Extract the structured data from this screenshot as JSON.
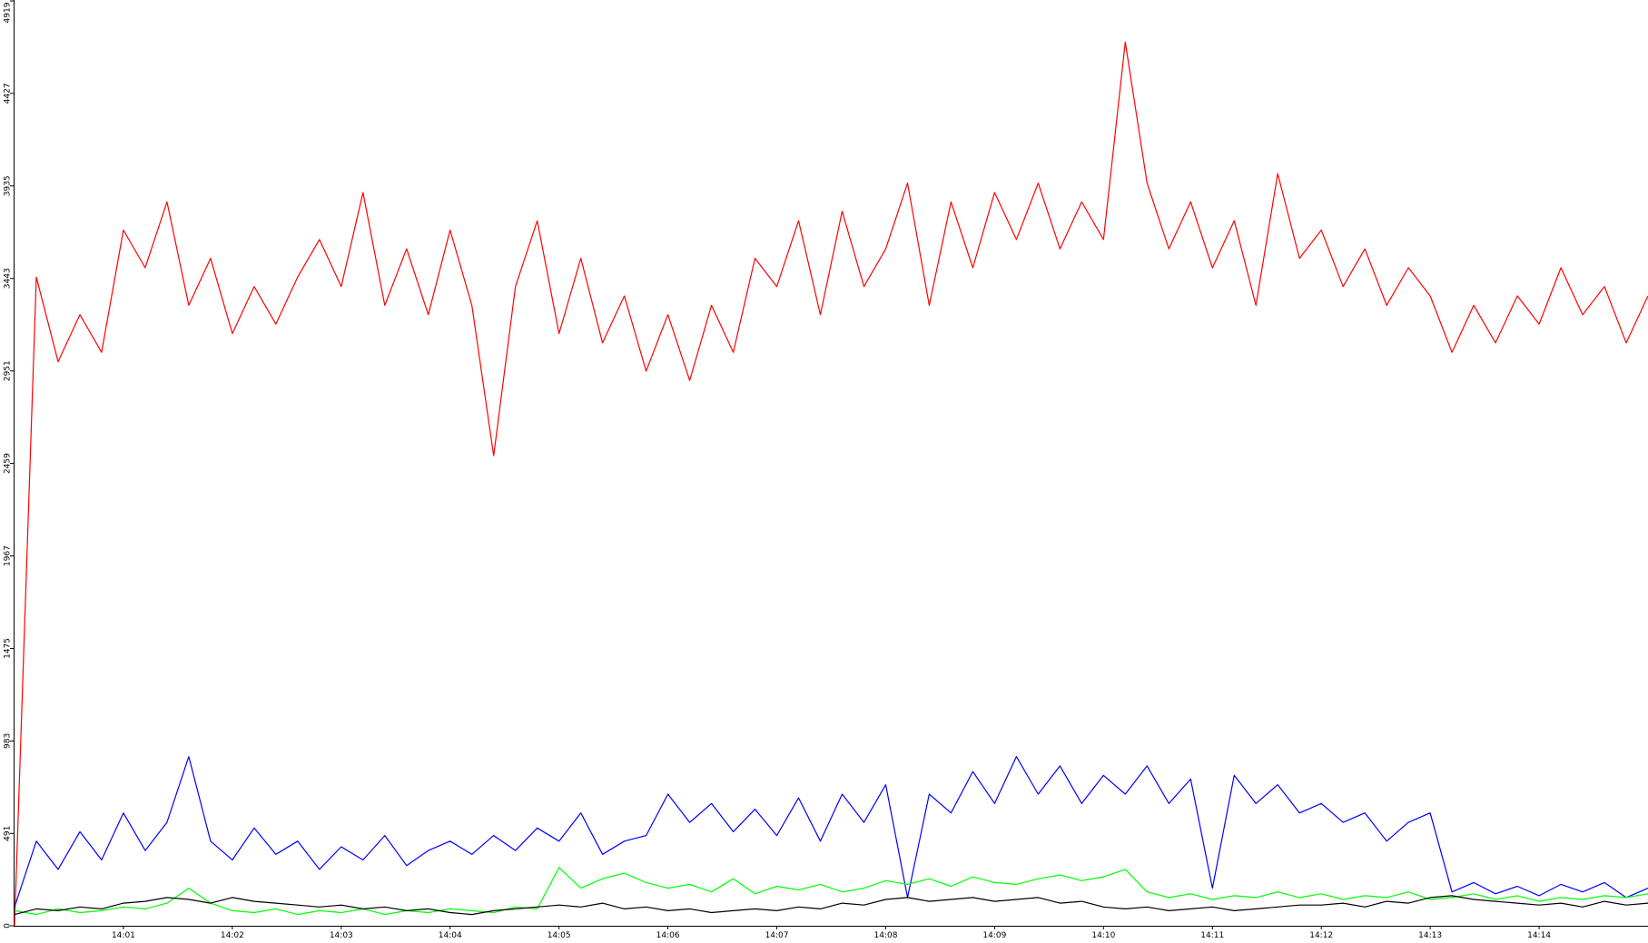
{
  "chart_data": {
    "type": "line",
    "xlim": [
      0,
      15
    ],
    "xticks": [
      {
        "value": 1,
        "label": "14:01"
      },
      {
        "value": 2,
        "label": "14:02"
      },
      {
        "value": 3,
        "label": "14:03"
      },
      {
        "value": 4,
        "label": "14:04"
      },
      {
        "value": 5,
        "label": "14:05"
      },
      {
        "value": 6,
        "label": "14:06"
      },
      {
        "value": 7,
        "label": "14:07"
      },
      {
        "value": 8,
        "label": "14:08"
      },
      {
        "value": 9,
        "label": "14:09"
      },
      {
        "value": 10,
        "label": "14:10"
      },
      {
        "value": 11,
        "label": "14:11"
      },
      {
        "value": 12,
        "label": "14:12"
      },
      {
        "value": 13,
        "label": "14:13"
      },
      {
        "value": 14,
        "label": "14:14"
      }
    ],
    "ylim": [
      0,
      4919
    ],
    "yticks": [
      0,
      491,
      983,
      1475,
      1967,
      2459,
      2951,
      3443,
      3935,
      4427,
      4919
    ],
    "series": [
      {
        "color": "#ff0000",
        "values": [
          0,
          3450,
          3000,
          3250,
          3050,
          3700,
          3500,
          3850,
          3300,
          3550,
          3150,
          3400,
          3200,
          3450,
          3650,
          3400,
          3900,
          3300,
          3600,
          3250,
          3700,
          3300,
          2500,
          3400,
          3750,
          3150,
          3550,
          3100,
          3350,
          2950,
          3250,
          2900,
          3300,
          3050,
          3550,
          3400,
          3750,
          3250,
          3800,
          3400,
          3600,
          3950,
          3300,
          3850,
          3500,
          3900,
          3650,
          3950,
          3600,
          3850,
          3650,
          4700,
          3950,
          3600,
          3850,
          3500,
          3750,
          3300,
          4000,
          3550,
          3700,
          3400,
          3600,
          3300,
          3500,
          3350,
          3050,
          3300,
          3100,
          3350,
          3200,
          3500,
          3250,
          3400,
          3100,
          3350
        ]
      },
      {
        "color": "#0000ff",
        "values": [
          100,
          450,
          300,
          500,
          350,
          600,
          400,
          550,
          900,
          450,
          350,
          520,
          380,
          450,
          300,
          420,
          350,
          480,
          320,
          400,
          450,
          380,
          480,
          400,
          520,
          450,
          600,
          380,
          450,
          480,
          700,
          550,
          650,
          500,
          620,
          480,
          680,
          450,
          700,
          550,
          750,
          150,
          700,
          600,
          820,
          650,
          900,
          700,
          850,
          650,
          800,
          700,
          850,
          650,
          780,
          200,
          800,
          650,
          750,
          600,
          650,
          550,
          600,
          450,
          550,
          600,
          180,
          230,
          170,
          210,
          160,
          220,
          180,
          230,
          150,
          200
        ]
      },
      {
        "color": "#00ff00",
        "values": [
          80,
          60,
          90,
          70,
          80,
          100,
          90,
          120,
          200,
          120,
          80,
          70,
          90,
          60,
          80,
          70,
          90,
          60,
          80,
          70,
          90,
          80,
          70,
          100,
          90,
          310,
          200,
          250,
          280,
          230,
          200,
          220,
          180,
          250,
          170,
          210,
          190,
          220,
          180,
          200,
          240,
          220,
          250,
          210,
          260,
          230,
          220,
          250,
          270,
          240,
          260,
          300,
          180,
          150,
          170,
          140,
          160,
          150,
          180,
          150,
          170,
          140,
          160,
          150,
          180,
          140,
          150,
          170,
          140,
          160,
          130,
          150,
          140,
          160,
          150,
          170
        ]
      },
      {
        "color": "#000000",
        "values": [
          60,
          90,
          80,
          100,
          90,
          120,
          130,
          150,
          140,
          120,
          150,
          130,
          120,
          110,
          100,
          110,
          90,
          100,
          80,
          90,
          70,
          60,
          80,
          90,
          100,
          110,
          100,
          120,
          90,
          100,
          80,
          90,
          70,
          80,
          90,
          80,
          100,
          90,
          120,
          110,
          140,
          150,
          130,
          140,
          150,
          130,
          140,
          150,
          120,
          130,
          100,
          90,
          100,
          80,
          90,
          100,
          80,
          90,
          100,
          110,
          110,
          120,
          100,
          130,
          120,
          150,
          160,
          140,
          130,
          120,
          110,
          120,
          100,
          130,
          110,
          120
        ]
      }
    ]
  }
}
